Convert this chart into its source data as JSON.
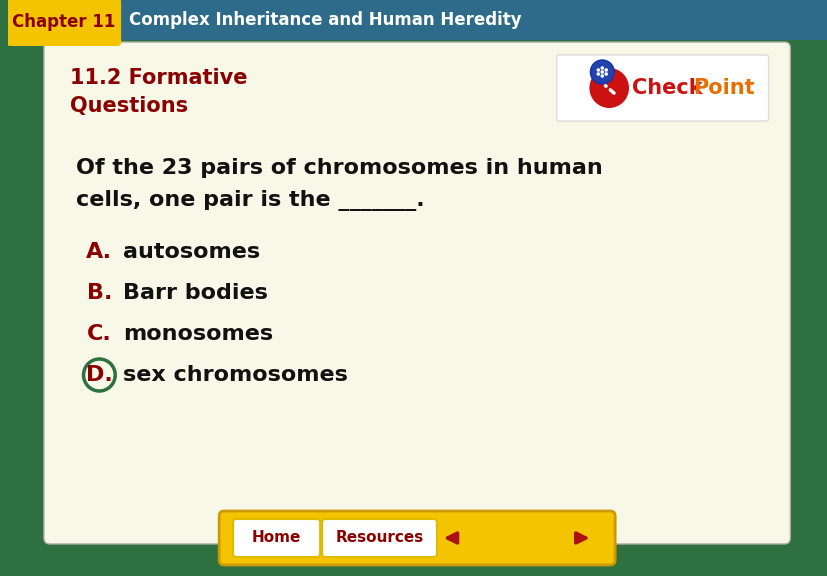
{
  "main_bg_color": "#2e7040",
  "header_bg_color": "#2e6b8a",
  "chapter_tab_color": "#f5c400",
  "chapter_tab_text_color": "#8b0000",
  "chapter_label": "Chapter 11",
  "title_text": "Complex Inheritance and Human Heredity",
  "title_text_color": "#ffffff",
  "content_bg_color": "#f8f8e8",
  "section_title_line1": "11.2 Formative",
  "section_title_line2": "Questions",
  "section_title_color": "#8b0000",
  "question_line1": "Of the 23 pairs of chromosomes in human",
  "question_line2": "cells, one pair is the _______.",
  "question_color": "#111111",
  "options": [
    {
      "letter": "A.",
      "text": "autosomes",
      "circled": false
    },
    {
      "letter": "B.",
      "text": "Barr bodies",
      "circled": false
    },
    {
      "letter": "C.",
      "text": "monosomes",
      "circled": false
    },
    {
      "letter": "D.",
      "text": "sex chromosomes",
      "circled": true
    }
  ],
  "option_letter_color": "#8b0000",
  "option_text_color": "#111111",
  "circle_color": "#2e7040",
  "nav_bar_color": "#f5c400",
  "nav_bar_border": "#cc9900",
  "home_btn_bg": "#ffffff",
  "home_btn_text": "Home",
  "home_btn_text_color": "#8b0000",
  "resources_btn_bg": "#ffffff",
  "resources_btn_text": "Resources",
  "resources_btn_text_color": "#8b0000",
  "arrow_color": "#aa1111",
  "checkpoint_bg": "#ffffff"
}
